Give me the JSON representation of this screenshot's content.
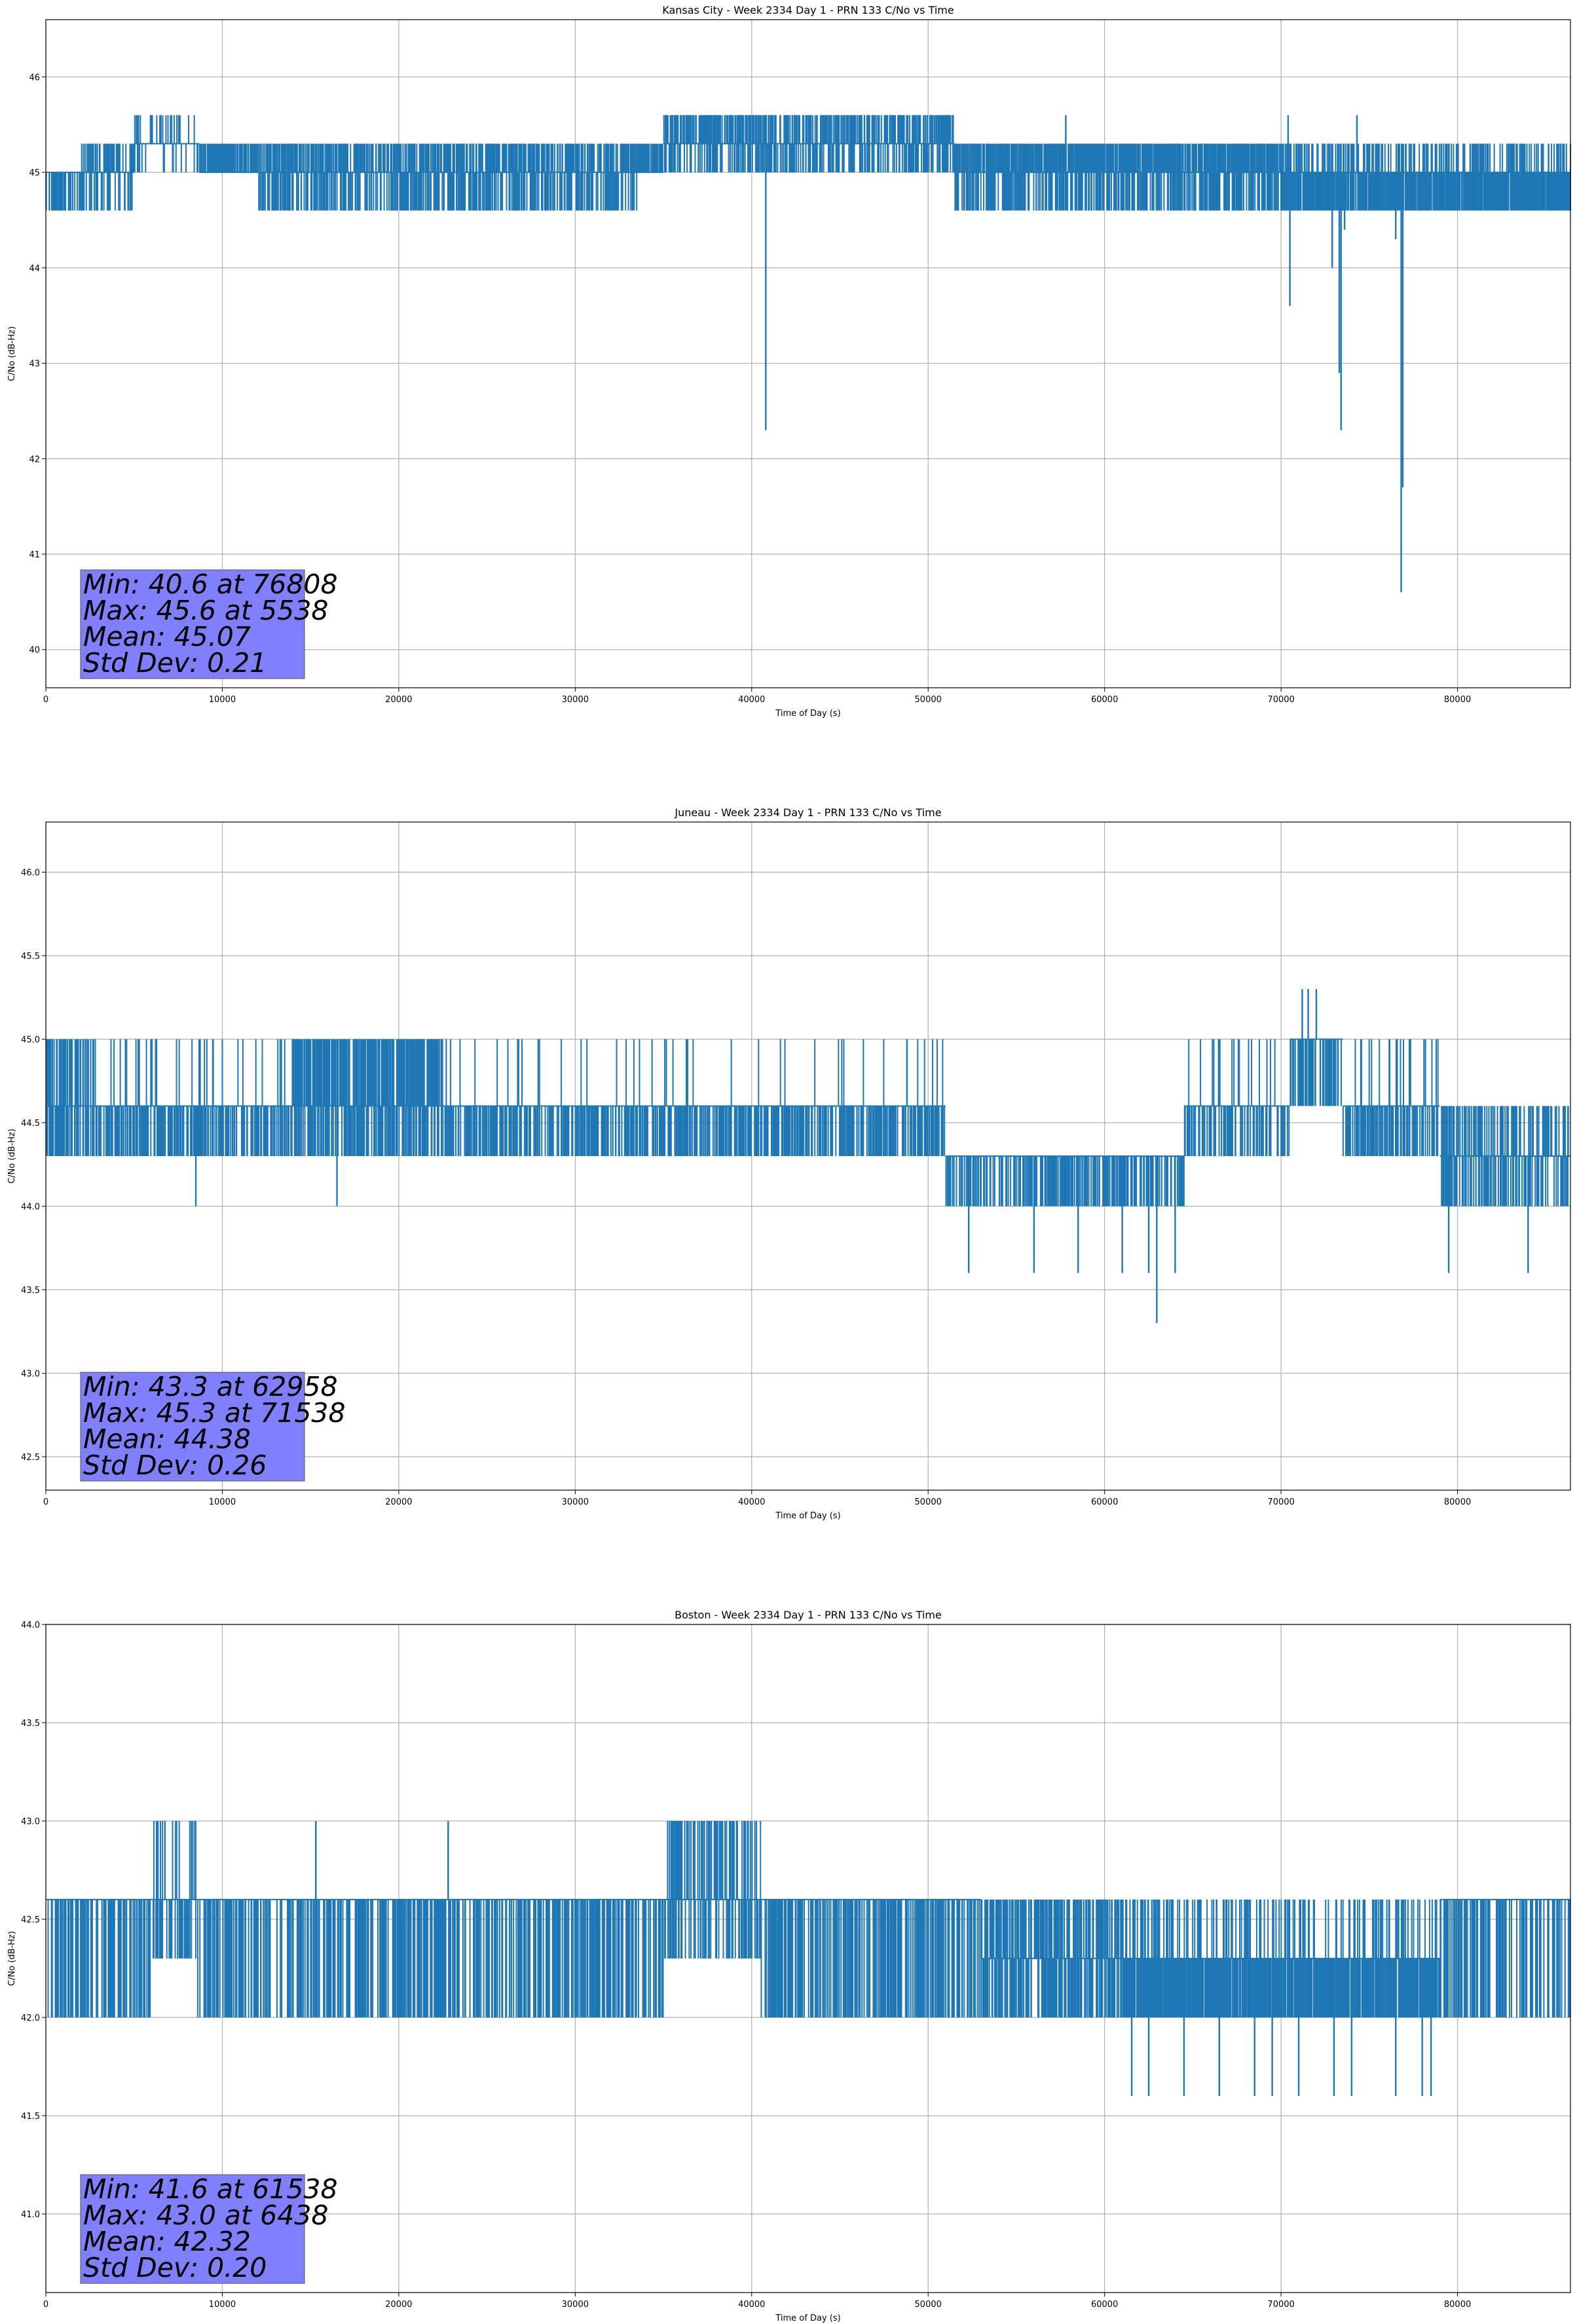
{
  "chart_data": [
    {
      "type": "line",
      "title": "Kansas City - Week 2334 Day 1 - PRN 133 C/No vs Time",
      "xlabel": "Time of Day (s)",
      "ylabel": "C/No (dB-Hz)",
      "xlim": [
        0,
        86400
      ],
      "ylim": [
        39.6,
        46.6
      ],
      "xticks": [
        0,
        10000,
        20000,
        30000,
        40000,
        50000,
        60000,
        70000,
        80000
      ],
      "yticks": [
        40,
        41,
        42,
        43,
        44,
        45,
        46
      ],
      "ytick_labels": [
        "40",
        "41",
        "42",
        "43",
        "44",
        "45",
        "46"
      ],
      "grid": true,
      "line_color": "#1f77b4",
      "stats_box_color": "#8080ff",
      "stats": [
        "Min: 40.6 at 76808",
        "Max: 45.6 at 5538",
        "Mean: 45.07",
        "Std Dev: 0.21"
      ],
      "levels": [
        44.6,
        45.0,
        45.3,
        45.6
      ],
      "segments": [
        {
          "x0": 0,
          "x1": 2000,
          "base": 45.0,
          "lo": 44.6,
          "hi": 45.0,
          "p_lo": 0.6,
          "p_hi": 0.0
        },
        {
          "x0": 2000,
          "x1": 5000,
          "base": 45.0,
          "lo": 44.6,
          "hi": 45.3,
          "p_lo": 0.4,
          "p_hi": 0.6
        },
        {
          "x0": 5000,
          "x1": 8700,
          "base": 45.3,
          "lo": 45.0,
          "hi": 45.6,
          "p_lo": 0.15,
          "p_hi": 0.3
        },
        {
          "x0": 8700,
          "x1": 12000,
          "base": 45.0,
          "lo": 45.0,
          "hi": 45.3,
          "p_lo": 0.0,
          "p_hi": 0.9
        },
        {
          "x0": 12000,
          "x1": 33500,
          "base": 45.0,
          "lo": 44.6,
          "hi": 45.3,
          "p_lo": 0.6,
          "p_hi": 0.7
        },
        {
          "x0": 33500,
          "x1": 35000,
          "base": 45.0,
          "lo": 45.0,
          "hi": 45.3,
          "p_lo": 0.0,
          "p_hi": 0.9
        },
        {
          "x0": 35000,
          "x1": 51500,
          "base": 45.3,
          "lo": 45.0,
          "hi": 45.6,
          "p_lo": 0.5,
          "p_hi": 0.7
        },
        {
          "x0": 51500,
          "x1": 70000,
          "base": 45.0,
          "lo": 44.6,
          "hi": 45.3,
          "p_lo": 0.6,
          "p_hi": 0.9
        },
        {
          "x0": 70000,
          "x1": 86400,
          "base": 45.0,
          "lo": 44.6,
          "hi": 45.3,
          "p_lo": 0.95,
          "p_hi": 0.4
        }
      ],
      "spikes": [
        [
          40800,
          42.3
        ],
        [
          70500,
          43.6
        ],
        [
          72900,
          44.0
        ],
        [
          73300,
          42.9
        ],
        [
          73400,
          42.3
        ],
        [
          73600,
          44.4
        ],
        [
          76500,
          44.3
        ],
        [
          76808,
          40.6
        ],
        [
          76900,
          41.7
        ],
        [
          57800,
          45.6
        ],
        [
          74300,
          45.6
        ],
        [
          70400,
          45.6
        ]
      ]
    },
    {
      "type": "line",
      "title": "Juneau - Week 2334 Day 1 - PRN 133 C/No vs Time",
      "xlabel": "Time of Day (s)",
      "ylabel": "C/No (dB-Hz)",
      "xlim": [
        0,
        86400
      ],
      "ylim": [
        42.3,
        46.3
      ],
      "xticks": [
        0,
        10000,
        20000,
        30000,
        40000,
        50000,
        60000,
        70000,
        80000
      ],
      "yticks": [
        42.5,
        43.0,
        43.5,
        44.0,
        44.5,
        45.0,
        45.5,
        46.0
      ],
      "ytick_labels": [
        "42.5",
        "43.0",
        "43.5",
        "44.0",
        "44.5",
        "45.0",
        "45.5",
        "46.0"
      ],
      "grid": true,
      "line_color": "#1f77b4",
      "stats_box_color": "#8080ff",
      "stats": [
        "Min: 43.3 at 62958",
        "Max: 45.3 at 71538",
        "Mean: 44.38",
        "Std Dev: 0.26"
      ],
      "levels": [
        43.6,
        44.0,
        44.3,
        44.6,
        45.0,
        45.3
      ],
      "segments": [
        {
          "x0": 0,
          "x1": 3000,
          "base": 44.6,
          "lo": 44.3,
          "hi": 45.0,
          "p_lo": 0.6,
          "p_hi": 0.5
        },
        {
          "x0": 3000,
          "x1": 14000,
          "base": 44.6,
          "lo": 44.3,
          "hi": 45.0,
          "p_lo": 0.6,
          "p_hi": 0.15
        },
        {
          "x0": 14000,
          "x1": 22500,
          "base": 44.6,
          "lo": 44.3,
          "hi": 45.0,
          "p_lo": 0.6,
          "p_hi": 0.8
        },
        {
          "x0": 22500,
          "x1": 51000,
          "base": 44.6,
          "lo": 44.3,
          "hi": 45.0,
          "p_lo": 0.6,
          "p_hi": 0.05
        },
        {
          "x0": 51000,
          "x1": 55000,
          "base": 44.3,
          "lo": 44.0,
          "hi": 44.3,
          "p_lo": 0.5,
          "p_hi": 0.0
        },
        {
          "x0": 55000,
          "x1": 64500,
          "base": 44.3,
          "lo": 44.0,
          "hi": 44.3,
          "p_lo": 0.6,
          "p_hi": 0.0
        },
        {
          "x0": 64500,
          "x1": 70500,
          "base": 44.6,
          "lo": 44.3,
          "hi": 45.0,
          "p_lo": 0.5,
          "p_hi": 0.1
        },
        {
          "x0": 70500,
          "x1": 73500,
          "base": 45.0,
          "lo": 44.6,
          "hi": 45.0,
          "p_lo": 0.6,
          "p_hi": 0.0
        },
        {
          "x0": 73500,
          "x1": 79000,
          "base": 44.6,
          "lo": 44.3,
          "hi": 45.0,
          "p_lo": 0.6,
          "p_hi": 0.1
        },
        {
          "x0": 79000,
          "x1": 86400,
          "base": 44.3,
          "lo": 44.0,
          "hi": 44.6,
          "p_lo": 0.5,
          "p_hi": 0.5
        }
      ],
      "spikes": [
        [
          8500,
          44.0
        ],
        [
          16500,
          44.0
        ],
        [
          52300,
          43.6
        ],
        [
          56000,
          43.6
        ],
        [
          58500,
          43.6
        ],
        [
          61000,
          43.6
        ],
        [
          62500,
          43.6
        ],
        [
          62958,
          43.3
        ],
        [
          64000,
          43.6
        ],
        [
          71200,
          45.3
        ],
        [
          71538,
          45.3
        ],
        [
          72000,
          45.3
        ],
        [
          79500,
          43.6
        ],
        [
          84000,
          43.6
        ],
        [
          48800,
          45.0
        ]
      ]
    },
    {
      "type": "line",
      "title": "Boston - Week 2334 Day 1 - PRN 133 C/No vs Time",
      "xlabel": "Time of Day (s)",
      "ylabel": "C/No (dB-Hz)",
      "xlim": [
        0,
        86400
      ],
      "ylim": [
        40.6,
        44.0
      ],
      "xticks": [
        0,
        10000,
        20000,
        30000,
        40000,
        50000,
        60000,
        70000,
        80000
      ],
      "yticks": [
        41.0,
        41.5,
        42.0,
        42.5,
        43.0,
        43.5,
        44.0
      ],
      "ytick_labels": [
        "41.0",
        "41.5",
        "42.0",
        "42.5",
        "43.0",
        "43.5",
        "44.0"
      ],
      "grid": true,
      "line_color": "#1f77b4",
      "stats_box_color": "#8080ff",
      "stats": [
        "Min: 41.6 at 61538",
        "Max: 43.0 at 6438",
        "Mean: 42.32",
        "Std Dev: 0.20"
      ],
      "levels": [
        41.6,
        42.0,
        42.3,
        42.6,
        43.0
      ],
      "segments": [
        {
          "x0": 0,
          "x1": 6000,
          "base": 42.6,
          "lo": 42.0,
          "hi": 42.6,
          "p_lo": 0.5,
          "p_hi": 0.0
        },
        {
          "x0": 6000,
          "x1": 8500,
          "base": 42.6,
          "lo": 42.3,
          "hi": 43.0,
          "p_lo": 0.4,
          "p_hi": 0.3
        },
        {
          "x0": 8500,
          "x1": 35000,
          "base": 42.6,
          "lo": 42.0,
          "hi": 42.6,
          "p_lo": 0.55,
          "p_hi": 0.0
        },
        {
          "x0": 35000,
          "x1": 40500,
          "base": 42.6,
          "lo": 42.3,
          "hi": 43.0,
          "p_lo": 0.4,
          "p_hi": 0.5
        },
        {
          "x0": 40500,
          "x1": 53000,
          "base": 42.6,
          "lo": 42.0,
          "hi": 42.6,
          "p_lo": 0.6,
          "p_hi": 0.0
        },
        {
          "x0": 53000,
          "x1": 61000,
          "base": 42.3,
          "lo": 42.0,
          "hi": 42.6,
          "p_lo": 0.6,
          "p_hi": 0.6
        },
        {
          "x0": 61000,
          "x1": 79000,
          "base": 42.3,
          "lo": 42.0,
          "hi": 42.6,
          "p_lo": 0.95,
          "p_hi": 0.3
        },
        {
          "x0": 79000,
          "x1": 86400,
          "base": 42.6,
          "lo": 42.0,
          "hi": 42.6,
          "p_lo": 0.5,
          "p_hi": 0.0
        }
      ],
      "spikes": [
        [
          15300,
          43.0
        ],
        [
          22800,
          43.0
        ],
        [
          61538,
          41.6
        ],
        [
          62500,
          41.6
        ],
        [
          64500,
          41.6
        ],
        [
          66500,
          41.6
        ],
        [
          68500,
          41.6
        ],
        [
          69500,
          41.6
        ],
        [
          71000,
          41.6
        ],
        [
          73000,
          41.6
        ],
        [
          74000,
          41.6
        ],
        [
          76500,
          41.6
        ],
        [
          78000,
          41.6
        ],
        [
          78500,
          41.6
        ]
      ]
    }
  ]
}
